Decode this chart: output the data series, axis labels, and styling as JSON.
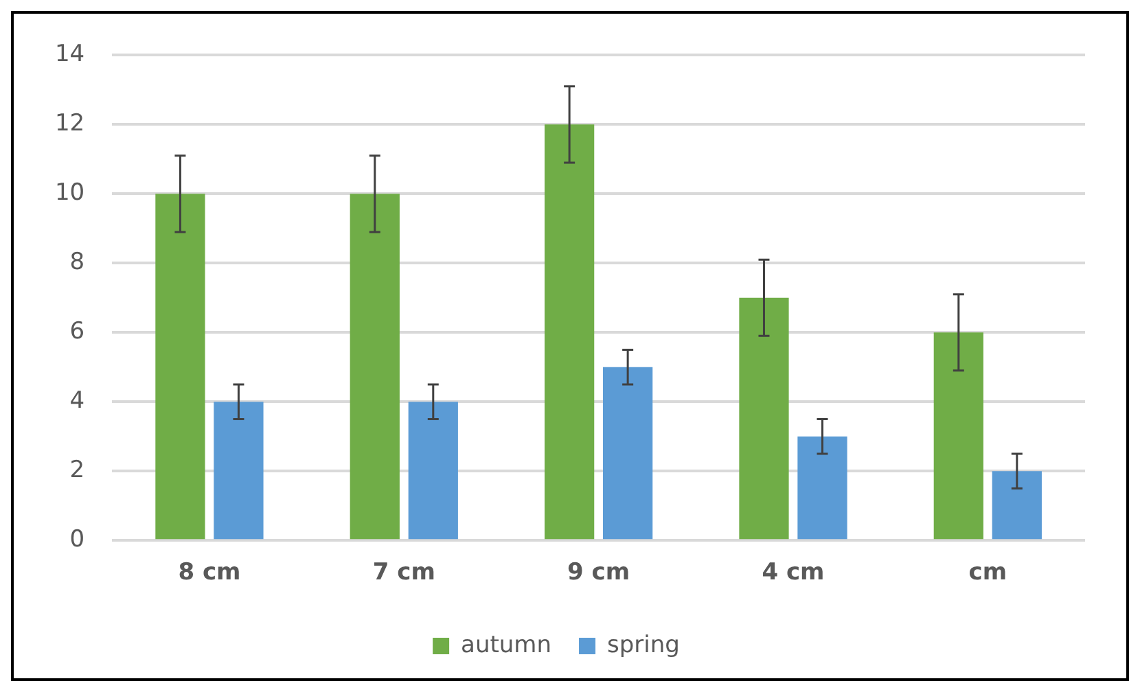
{
  "chart_data": {
    "type": "bar",
    "categories": [
      "8 cm",
      "7 cm",
      "9 cm",
      "4 cm",
      "cm"
    ],
    "series": [
      {
        "name": "autumn",
        "color": "#70ad47",
        "values": [
          10,
          10,
          12,
          7,
          6
        ],
        "errors": [
          1.1,
          1.1,
          1.1,
          1.1,
          1.1
        ]
      },
      {
        "name": "spring",
        "color": "#5b9bd5",
        "values": [
          4,
          4,
          5,
          3,
          2
        ],
        "errors": [
          0.5,
          0.5,
          0.5,
          0.5,
          0.5
        ]
      }
    ],
    "ylim": [
      0,
      14
    ],
    "yticks": [
      0,
      2,
      4,
      6,
      8,
      10,
      12,
      14
    ],
    "grid": "y",
    "legend": "bottom"
  }
}
